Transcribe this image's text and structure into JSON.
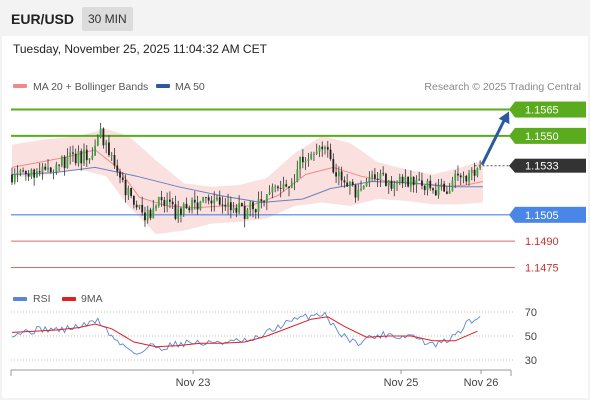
{
  "header": {
    "symbol": "EUR/USD",
    "timeframe": "30 MIN"
  },
  "timestamp": "Tuesday, November 25, 2025 11:04:32 AM CET",
  "legend": {
    "ma20_label": "MA 20 + Bollinger Bands",
    "ma50_label": "MA 50",
    "credit": "Research © 2025 Trading Central",
    "ma20_color": "#f08a8a",
    "ma50_color": "#2c5aa0"
  },
  "rsi_legend": {
    "rsi_label": "RSI",
    "ma_label": "9MA",
    "rsi_color": "#5a86d6",
    "ma_color": "#e02020"
  },
  "colors": {
    "bull": "#3aa53a",
    "bear": "#222222",
    "band_fill": "#fadada",
    "resistance": "#5aab1e",
    "support_blue": "#4a86e8",
    "support_red": "#e06666",
    "last_price": "#333333",
    "arrow": "#2c5aa0"
  },
  "chart_data": [
    {
      "type": "candlestick",
      "x_ticks": [
        "Nov 23",
        "Nov 25",
        "Nov 26"
      ],
      "y_range": [
        1.1465,
        1.1575
      ],
      "price_levels": [
        {
          "value": 1.1565,
          "label": "1.1565",
          "kind": "resistance"
        },
        {
          "value": 1.155,
          "label": "1.1550",
          "kind": "resistance"
        },
        {
          "value": 1.1533,
          "label": "1.1533",
          "kind": "last"
        },
        {
          "value": 1.1505,
          "label": "1.1505",
          "kind": "support-major"
        },
        {
          "value": 1.149,
          "label": "1.1490",
          "kind": "support"
        },
        {
          "value": 1.1475,
          "label": "1.1475",
          "kind": "support"
        }
      ],
      "forecast_arrow": {
        "from": 1.1533,
        "to": 1.1565
      },
      "close_path": [
        [
          0,
          1.1528
        ],
        [
          8,
          1.153
        ],
        [
          16,
          1.1534
        ],
        [
          24,
          1.1538
        ],
        [
          29,
          1.154
        ],
        [
          32,
          1.155
        ],
        [
          36,
          1.1536
        ],
        [
          39,
          1.1525
        ],
        [
          44,
          1.151
        ],
        [
          48,
          1.1503
        ],
        [
          52,
          1.1512
        ],
        [
          56,
          1.151
        ],
        [
          60,
          1.1505
        ],
        [
          64,
          1.151
        ],
        [
          68,
          1.1512
        ],
        [
          72,
          1.151
        ],
        [
          76,
          1.1512
        ],
        [
          80,
          1.1509
        ],
        [
          84,
          1.1507
        ],
        [
          88,
          1.151
        ],
        [
          92,
          1.1518
        ],
        [
          96,
          1.1522
        ],
        [
          100,
          1.152
        ],
        [
          104,
          1.1536
        ],
        [
          108,
          1.1543
        ],
        [
          112,
          1.1546
        ],
        [
          116,
          1.1532
        ],
        [
          120,
          1.1524
        ],
        [
          124,
          1.1517
        ],
        [
          128,
          1.1523
        ],
        [
          132,
          1.1525
        ],
        [
          136,
          1.1524
        ],
        [
          140,
          1.1523
        ],
        [
          144,
          1.1526
        ],
        [
          148,
          1.1522
        ],
        [
          152,
          1.1519
        ],
        [
          156,
          1.152
        ],
        [
          160,
          1.1524
        ],
        [
          164,
          1.1527
        ],
        [
          168,
          1.1533
        ]
      ],
      "ma20_path": [
        [
          0,
          1.1532
        ],
        [
          10,
          1.1535
        ],
        [
          20,
          1.1538
        ],
        [
          30,
          1.1542
        ],
        [
          38,
          1.1532
        ],
        [
          46,
          1.1515
        ],
        [
          56,
          1.151
        ],
        [
          66,
          1.1509
        ],
        [
          76,
          1.151
        ],
        [
          86,
          1.151
        ],
        [
          96,
          1.1516
        ],
        [
          106,
          1.1528
        ],
        [
          116,
          1.1532
        ],
        [
          126,
          1.1527
        ],
        [
          136,
          1.1524
        ],
        [
          146,
          1.1523
        ],
        [
          156,
          1.1521
        ],
        [
          164,
          1.1522
        ],
        [
          170,
          1.1524
        ]
      ],
      "band_upper_path": [
        [
          0,
          1.1545
        ],
        [
          12,
          1.1548
        ],
        [
          24,
          1.155
        ],
        [
          34,
          1.1554
        ],
        [
          42,
          1.155
        ],
        [
          52,
          1.1536
        ],
        [
          62,
          1.1523
        ],
        [
          72,
          1.1521
        ],
        [
          82,
          1.1522
        ],
        [
          92,
          1.1526
        ],
        [
          102,
          1.154
        ],
        [
          112,
          1.155
        ],
        [
          122,
          1.1546
        ],
        [
          132,
          1.1535
        ],
        [
          142,
          1.1531
        ],
        [
          152,
          1.1528
        ],
        [
          162,
          1.1532
        ],
        [
          170,
          1.1536
        ]
      ],
      "band_lower_path": [
        [
          0,
          1.1526
        ],
        [
          12,
          1.1528
        ],
        [
          24,
          1.1531
        ],
        [
          34,
          1.1527
        ],
        [
          42,
          1.151
        ],
        [
          52,
          1.1494
        ],
        [
          62,
          1.1496
        ],
        [
          72,
          1.15
        ],
        [
          82,
          1.1501
        ],
        [
          92,
          1.1503
        ],
        [
          102,
          1.151
        ],
        [
          112,
          1.1512
        ],
        [
          122,
          1.151
        ],
        [
          132,
          1.1514
        ],
        [
          142,
          1.1513
        ],
        [
          152,
          1.1511
        ],
        [
          162,
          1.1511
        ],
        [
          170,
          1.1512
        ]
      ],
      "ma50_path": [
        [
          0,
          1.1528
        ],
        [
          15,
          1.1529
        ],
        [
          30,
          1.1532
        ],
        [
          45,
          1.1527
        ],
        [
          60,
          1.1521
        ],
        [
          75,
          1.1516
        ],
        [
          90,
          1.1512
        ],
        [
          105,
          1.1514
        ],
        [
          115,
          1.152
        ],
        [
          130,
          1.1524
        ],
        [
          145,
          1.1523
        ],
        [
          160,
          1.1521
        ],
        [
          170,
          1.1521
        ]
      ]
    },
    {
      "type": "line",
      "name": "RSI",
      "y_ticks": [
        70,
        50,
        30
      ],
      "y_range": [
        20,
        80
      ],
      "rsi_path": [
        [
          0,
          52
        ],
        [
          6,
          54
        ],
        [
          12,
          56
        ],
        [
          18,
          55
        ],
        [
          24,
          58
        ],
        [
          28,
          60
        ],
        [
          31,
          64
        ],
        [
          34,
          55
        ],
        [
          38,
          45
        ],
        [
          42,
          40
        ],
        [
          46,
          35
        ],
        [
          50,
          42
        ],
        [
          54,
          40
        ],
        [
          58,
          43
        ],
        [
          62,
          44
        ],
        [
          66,
          45
        ],
        [
          70,
          43
        ],
        [
          74,
          46
        ],
        [
          78,
          44
        ],
        [
          82,
          46
        ],
        [
          86,
          45
        ],
        [
          90,
          50
        ],
        [
          94,
          55
        ],
        [
          98,
          60
        ],
        [
          102,
          63
        ],
        [
          106,
          66
        ],
        [
          110,
          68
        ],
        [
          113,
          69
        ],
        [
          116,
          58
        ],
        [
          120,
          50
        ],
        [
          124,
          44
        ],
        [
          128,
          48
        ],
        [
          132,
          50
        ],
        [
          136,
          52
        ],
        [
          140,
          49
        ],
        [
          144,
          51
        ],
        [
          148,
          46
        ],
        [
          152,
          42
        ],
        [
          156,
          45
        ],
        [
          160,
          50
        ],
        [
          164,
          60
        ],
        [
          168,
          65
        ]
      ],
      "ma_path": [
        [
          0,
          53
        ],
        [
          8,
          54
        ],
        [
          16,
          55
        ],
        [
          24,
          57
        ],
        [
          30,
          60
        ],
        [
          36,
          56
        ],
        [
          44,
          45
        ],
        [
          52,
          41
        ],
        [
          60,
          42
        ],
        [
          68,
          44
        ],
        [
          76,
          44
        ],
        [
          84,
          45
        ],
        [
          92,
          50
        ],
        [
          100,
          57
        ],
        [
          108,
          64
        ],
        [
          114,
          66
        ],
        [
          120,
          58
        ],
        [
          128,
          49
        ],
        [
          136,
          50
        ],
        [
          144,
          50
        ],
        [
          152,
          46
        ],
        [
          160,
          46
        ],
        [
          168,
          54
        ]
      ]
    }
  ]
}
